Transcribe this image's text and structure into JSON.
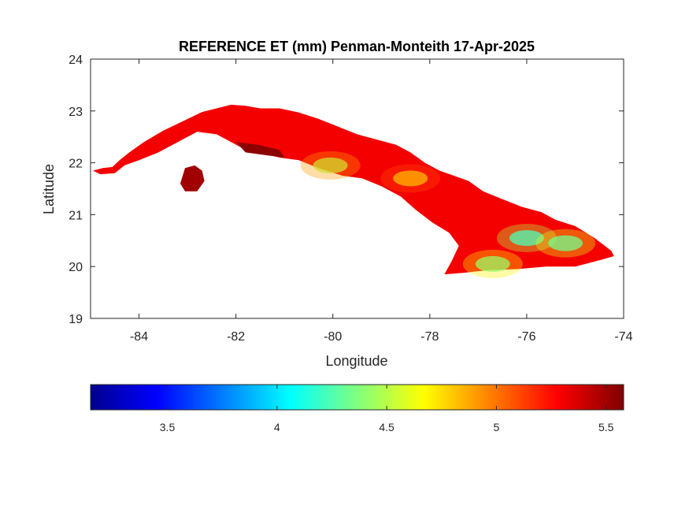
{
  "chart_data": {
    "type": "heatmap",
    "title": "REFERENCE ET (mm) Penman-Monteith 17-Apr-2025",
    "xlabel": "Longitude",
    "ylabel": "Latitude",
    "xlim": [
      -85,
      -74
    ],
    "ylim": [
      19,
      24
    ],
    "xticks": [
      -84,
      -82,
      -80,
      -78,
      -76,
      -74
    ],
    "yticks": [
      19,
      20,
      21,
      22,
      23,
      24
    ],
    "colormap": "jet",
    "colorbar": {
      "orientation": "horizontal",
      "location": "bottom",
      "clim": [
        3.15,
        5.58
      ],
      "ticks": [
        3.5,
        4,
        4.5,
        5,
        5.5
      ]
    },
    "region_outline": {
      "main_island": [
        [
          -84.95,
          21.85
        ],
        [
          -84.75,
          21.9
        ],
        [
          -84.55,
          21.92
        ],
        [
          -84.4,
          22.05
        ],
        [
          -84.2,
          22.2
        ],
        [
          -83.9,
          22.4
        ],
        [
          -83.5,
          22.62
        ],
        [
          -83.1,
          22.8
        ],
        [
          -82.7,
          22.98
        ],
        [
          -82.4,
          23.05
        ],
        [
          -82.1,
          23.12
        ],
        [
          -81.8,
          23.1
        ],
        [
          -81.5,
          23.05
        ],
        [
          -81.1,
          23.05
        ],
        [
          -80.7,
          22.97
        ],
        [
          -80.3,
          22.85
        ],
        [
          -79.9,
          22.7
        ],
        [
          -79.5,
          22.55
        ],
        [
          -79.1,
          22.45
        ],
        [
          -78.7,
          22.35
        ],
        [
          -78.4,
          22.2
        ],
        [
          -78.1,
          22.0
        ],
        [
          -77.8,
          21.85
        ],
        [
          -77.5,
          21.75
        ],
        [
          -77.2,
          21.65
        ],
        [
          -76.9,
          21.45
        ],
        [
          -76.5,
          21.3
        ],
        [
          -76.1,
          21.15
        ],
        [
          -75.7,
          21.05
        ],
        [
          -75.4,
          20.9
        ],
        [
          -75.0,
          20.78
        ],
        [
          -74.6,
          20.55
        ],
        [
          -74.25,
          20.3
        ],
        [
          -74.2,
          20.2
        ],
        [
          -74.5,
          20.12
        ],
        [
          -75.0,
          20.0
        ],
        [
          -75.6,
          20.0
        ],
        [
          -76.2,
          19.95
        ],
        [
          -76.8,
          19.93
        ],
        [
          -77.3,
          19.88
        ],
        [
          -77.7,
          19.85
        ],
        [
          -77.55,
          20.1
        ],
        [
          -77.4,
          20.4
        ],
        [
          -77.6,
          20.65
        ],
        [
          -77.95,
          20.85
        ],
        [
          -78.3,
          21.1
        ],
        [
          -78.6,
          21.35
        ],
        [
          -79.0,
          21.55
        ],
        [
          -79.4,
          21.7
        ],
        [
          -79.8,
          21.75
        ],
        [
          -80.3,
          21.9
        ],
        [
          -80.7,
          22.05
        ],
        [
          -81.1,
          22.1
        ],
        [
          -81.5,
          22.2
        ],
        [
          -81.8,
          22.25
        ],
        [
          -82.1,
          22.4
        ],
        [
          -82.4,
          22.55
        ],
        [
          -82.8,
          22.6
        ],
        [
          -83.2,
          22.4
        ],
        [
          -83.6,
          22.2
        ],
        [
          -84.0,
          22.05
        ],
        [
          -84.3,
          21.95
        ],
        [
          -84.5,
          21.8
        ],
        [
          -84.8,
          21.78
        ]
      ],
      "isla_juventud": [
        [
          -83.05,
          21.9
        ],
        [
          -82.85,
          21.95
        ],
        [
          -82.7,
          21.85
        ],
        [
          -82.65,
          21.65
        ],
        [
          -82.8,
          21.45
        ],
        [
          -83.05,
          21.45
        ],
        [
          -83.15,
          21.6
        ]
      ],
      "zapata_peninsula": [
        [
          -82.0,
          22.4
        ],
        [
          -81.55,
          22.35
        ],
        [
          -81.1,
          22.25
        ],
        [
          -81.0,
          22.1
        ],
        [
          -81.4,
          22.15
        ],
        [
          -81.8,
          22.2
        ]
      ]
    },
    "value_pattern": {
      "base": 5.3,
      "hotspots": [
        {
          "lon": -80.05,
          "lat": 21.95,
          "value": 4.5
        },
        {
          "lon": -78.4,
          "lat": 21.7,
          "value": 4.7
        },
        {
          "lon": -76.0,
          "lat": 20.55,
          "value": 4.1
        },
        {
          "lon": -75.2,
          "lat": 20.45,
          "value": 4.2
        },
        {
          "lon": -76.7,
          "lat": 20.05,
          "value": 4.3
        }
      ]
    }
  }
}
